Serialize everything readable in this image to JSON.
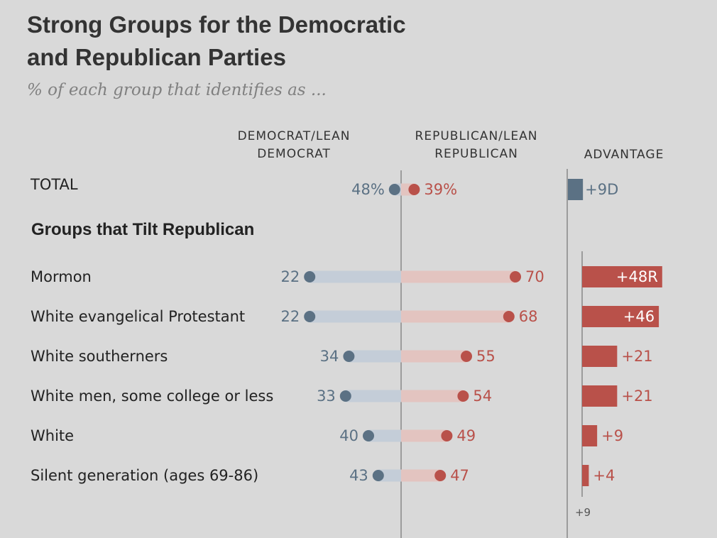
{
  "title_line1": "Strong Groups for the Democratic",
  "title_line2": "and Republican Parties",
  "subtitle": "% of each group that identifies as ...",
  "columns": {
    "democrat_line1": "DEMOCRAT/LEAN",
    "democrat_line2": "DEMOCRAT",
    "republican_line1": "REPUBLICAN/LEAN",
    "republican_line2": "REPUBLICAN",
    "advantage": "ADVANTAGE"
  },
  "total_label": "TOTAL",
  "group_heading": "Groups that Tilt Republican",
  "colors": {
    "democrat": "#5b7184",
    "republican": "#b9514a",
    "dem_bar": "#c4cdd8",
    "rep_bar": "#e3c4c0",
    "axis": "#888888"
  },
  "chart_data": {
    "type": "dot-bar",
    "series": [
      {
        "name": "DEMOCRAT/LEAN DEMOCRAT"
      },
      {
        "name": "REPUBLICAN/LEAN REPUBLICAN"
      },
      {
        "name": "ADVANTAGE"
      }
    ],
    "total": {
      "label": "TOTAL",
      "democrat": 48,
      "republican": 39,
      "democrat_label": "48%",
      "republican_label": "39%",
      "advantage": 9,
      "advantage_label": "+9D",
      "advantage_party": "D"
    },
    "rows": [
      {
        "label": "Mormon",
        "democrat": 22,
        "republican": 70,
        "democrat_label": "22",
        "republican_label": "70",
        "advantage": 48,
        "advantage_label": "+48R",
        "advantage_party": "R"
      },
      {
        "label": "White evangelical Protestant",
        "democrat": 22,
        "republican": 68,
        "democrat_label": "22",
        "republican_label": "68",
        "advantage": 46,
        "advantage_label": "+46",
        "advantage_party": "R"
      },
      {
        "label": "White southerners",
        "democrat": 34,
        "republican": 55,
        "democrat_label": "34",
        "republican_label": "55",
        "advantage": 21,
        "advantage_label": "+21",
        "advantage_party": "R"
      },
      {
        "label": "White men, some college or less",
        "democrat": 33,
        "republican": 54,
        "democrat_label": "33",
        "republican_label": "54",
        "advantage": 21,
        "advantage_label": "+21",
        "advantage_party": "R"
      },
      {
        "label": "White",
        "democrat": 40,
        "republican": 49,
        "democrat_label": "40",
        "republican_label": "49",
        "advantage": 9,
        "advantage_label": "+9",
        "advantage_party": "R"
      },
      {
        "label": "Silent generation (ages 69-86)",
        "democrat": 43,
        "republican": 47,
        "democrat_label": "43",
        "republican_label": "47",
        "advantage": 4,
        "advantage_label": "+4",
        "advantage_party": "R"
      }
    ],
    "advantage_axis_label": "+9",
    "xlim": [
      0,
      100
    ]
  }
}
